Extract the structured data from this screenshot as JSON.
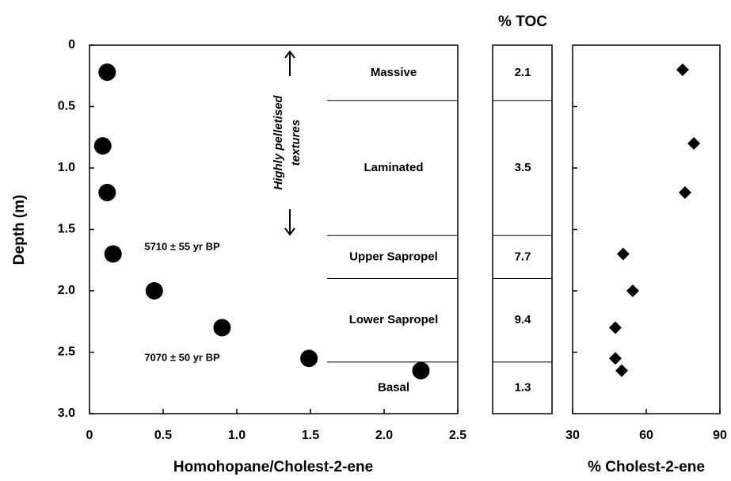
{
  "chart_data": [
    {
      "type": "scatter",
      "xlabel": "Homohopane/Cholest-2-ene",
      "ylabel": "Depth (m)",
      "x": [
        0.12,
        0.09,
        0.12,
        0.16,
        0.44,
        0.9,
        1.49,
        2.25
      ],
      "y": [
        0.22,
        0.82,
        1.2,
        1.7,
        2.0,
        2.3,
        2.55,
        2.65
      ],
      "xlim": [
        0,
        2.5
      ],
      "ylim": [
        0,
        3.0
      ],
      "invert_y": true,
      "marker": "circle",
      "color": "#000000",
      "xticks": [
        0,
        0.5,
        {
          "value": 1,
          "label": "1.0"
        },
        1.5,
        {
          "value": 2,
          "label": "2.0"
        },
        2.5
      ],
      "yticks": [
        0,
        0.5,
        {
          "value": 1,
          "label": "1.0"
        },
        1.5,
        {
          "value": 2,
          "label": "2.0"
        },
        2.5,
        {
          "value": 3,
          "label": "3.0"
        }
      ],
      "layer_names": [
        "Massive",
        "Laminated",
        "Upper Sapropel",
        "Lower Sapropel",
        "Basal"
      ],
      "layer_boundaries": [
        0.45,
        1.55,
        1.9,
        2.58
      ],
      "annotations": [
        "5710 ± 55 yr BP",
        "7070 ± 50 yr BP",
        "Highly pelletised",
        "textures"
      ]
    },
    {
      "type": "column",
      "title": "% TOC",
      "values": [
        2.1,
        3.5,
        7.7,
        9.4,
        1.3
      ]
    },
    {
      "type": "scatter",
      "xlabel": "% Cholest-2-ene",
      "x": [
        74.8,
        79.4,
        75.8,
        50.6,
        54.5,
        47.4,
        47.4,
        50
      ],
      "y": [
        0.2,
        0.8,
        1.2,
        1.7,
        2.0,
        2.3,
        2.55,
        2.65
      ],
      "xlim": [
        30,
        90
      ],
      "xticks": [
        30,
        60,
        90
      ],
      "marker": "diamond",
      "color": "#000000"
    }
  ]
}
